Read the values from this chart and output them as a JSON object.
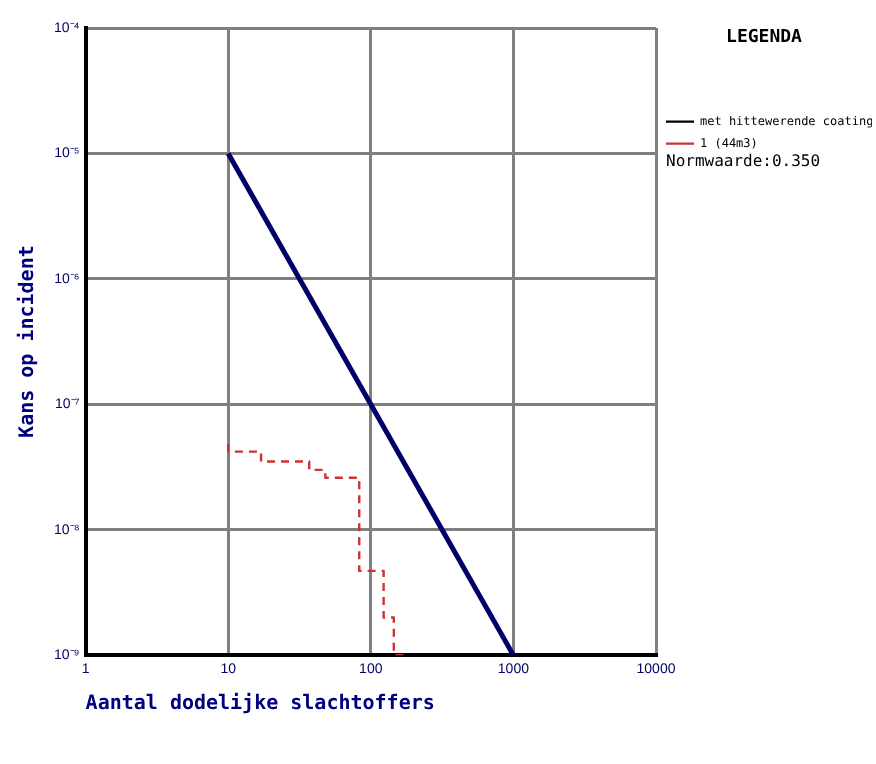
{
  "chart_data": {
    "type": "line",
    "xlabel": "Aantal dodelijke slachtoffers",
    "ylabel": "Kans op incident",
    "legend_title": "LEGENDA",
    "log": "xy",
    "xlim": [
      1,
      10000
    ],
    "xticks": [
      1,
      10,
      100,
      1000,
      10000
    ],
    "ylim": [
      1e-09,
      0.0001
    ],
    "yticks": [
      {
        "value": 1e-09,
        "label": "10⁻⁹"
      },
      {
        "value": 1e-08,
        "label": "10⁻⁸"
      },
      {
        "value": 1e-07,
        "label": "10⁻⁷"
      },
      {
        "value": 1e-06,
        "label": "10⁻⁶"
      },
      {
        "value": 1e-05,
        "label": "10⁻⁵"
      },
      {
        "value": 0.0001,
        "label": "10⁻⁴"
      }
    ],
    "grid": true,
    "legend": "right",
    "marker": "none",
    "series": [
      {
        "name": "met hittewerende coating",
        "color": "#000000",
        "line_style": "dashed"
      },
      {
        "name": "1 (44m3)",
        "type": "step",
        "color": "#cc3333",
        "line_style": "dashed",
        "x": [
          10,
          17,
          37,
          48,
          83,
          123,
          145,
          185
        ],
        "values": [
          4.8e-08,
          4.2e-08,
          3.5e-08,
          3e-08,
          2.6e-08,
          4.7e-09,
          2e-09,
          1e-09
        ]
      },
      {
        "color": "#000066",
        "line_style": "solid",
        "x": [
          10,
          1000
        ],
        "values": [
          1e-05,
          1e-09
        ]
      }
    ],
    "annotations": [
      "Normwaarde:0.350"
    ]
  }
}
